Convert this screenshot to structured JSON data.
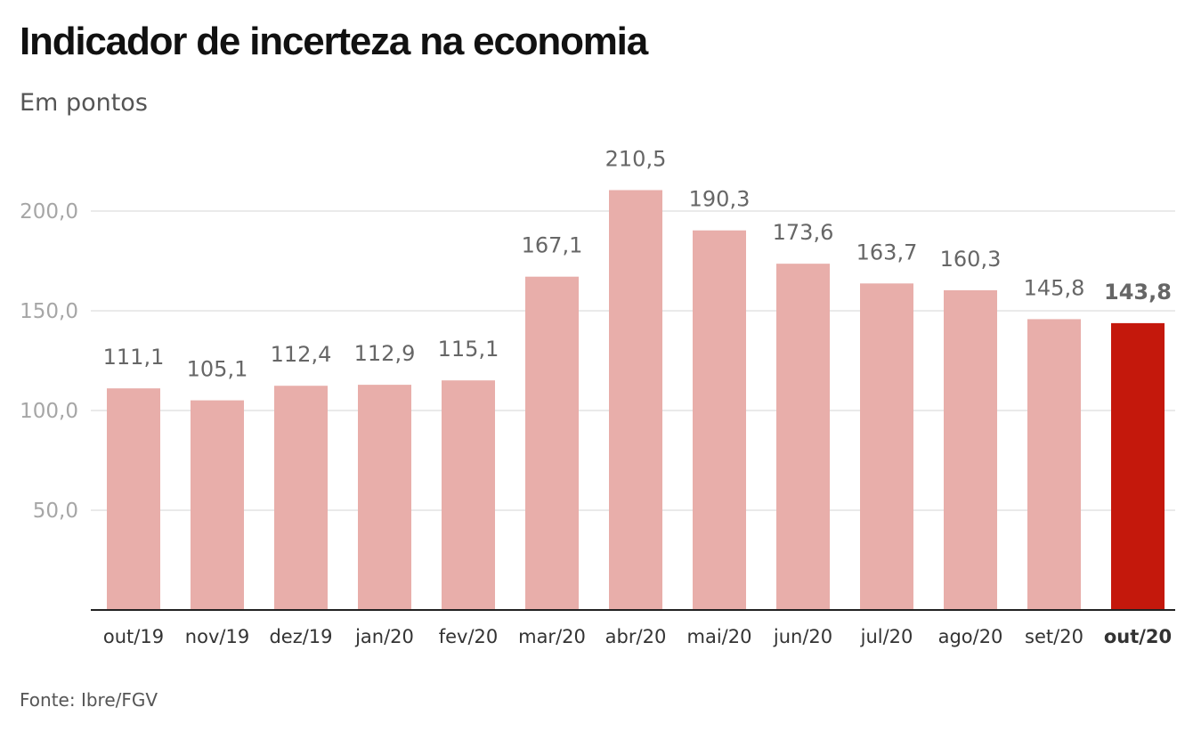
{
  "title": "Indicador de incerteza na economia",
  "subtitle": "Em pontos",
  "source": "Fonte: Ibre/FGV",
  "colors": {
    "bar": "#e8aeaa",
    "highlight": "#c4180c",
    "grid": "#e3e3e3",
    "axis": "#222222"
  },
  "chart_data": {
    "type": "bar",
    "categories": [
      "out/19",
      "nov/19",
      "dez/19",
      "jan/20",
      "fev/20",
      "mar/20",
      "abr/20",
      "mai/20",
      "jun/20",
      "jul/20",
      "ago/20",
      "set/20",
      "out/20"
    ],
    "values": [
      111.1,
      105.1,
      112.4,
      112.9,
      115.1,
      167.1,
      210.5,
      190.3,
      173.6,
      163.7,
      160.3,
      145.8,
      143.8
    ],
    "value_labels": [
      "111,1",
      "105,1",
      "112,4",
      "112,9",
      "115,1",
      "167,1",
      "210,5",
      "190,3",
      "173,6",
      "163,7",
      "160,3",
      "145,8",
      "143,8"
    ],
    "highlight_index": 12,
    "yticks": [
      50,
      100,
      150,
      200
    ],
    "ytick_labels": [
      "50,0",
      "100,0",
      "150,0",
      "200,0"
    ],
    "ylim": [
      0,
      210.5
    ],
    "grid": true,
    "legend": "none"
  }
}
